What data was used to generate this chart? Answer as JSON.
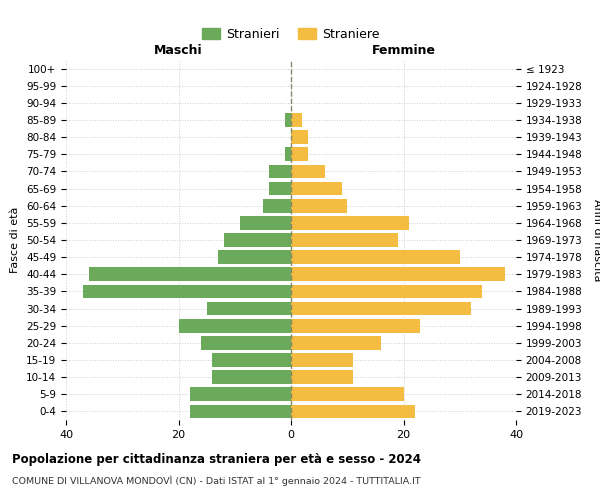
{
  "age_groups": [
    "0-4",
    "5-9",
    "10-14",
    "15-19",
    "20-24",
    "25-29",
    "30-34",
    "35-39",
    "40-44",
    "45-49",
    "50-54",
    "55-59",
    "60-64",
    "65-69",
    "70-74",
    "75-79",
    "80-84",
    "85-89",
    "90-94",
    "95-99",
    "100+"
  ],
  "birth_years": [
    "2019-2023",
    "2014-2018",
    "2009-2013",
    "2004-2008",
    "1999-2003",
    "1994-1998",
    "1989-1993",
    "1984-1988",
    "1979-1983",
    "1974-1978",
    "1969-1973",
    "1964-1968",
    "1959-1963",
    "1954-1958",
    "1949-1953",
    "1944-1948",
    "1939-1943",
    "1934-1938",
    "1929-1933",
    "1924-1928",
    "≤ 1923"
  ],
  "maschi": [
    18,
    18,
    14,
    14,
    16,
    20,
    15,
    37,
    36,
    13,
    12,
    9,
    5,
    4,
    4,
    1,
    0,
    1,
    0,
    0,
    0
  ],
  "femmine": [
    22,
    20,
    11,
    11,
    16,
    23,
    32,
    34,
    38,
    30,
    19,
    21,
    10,
    9,
    6,
    3,
    3,
    2,
    0,
    0,
    0
  ],
  "color_maschi": "#6aaa5a",
  "color_femmine": "#f5bc42",
  "bg_color": "#ffffff",
  "grid_color": "#cccccc",
  "title": "Popolazione per cittadinanza straniera per età e sesso - 2024",
  "subtitle": "COMUNE DI VILLANOVA MONDOVÌ (CN) - Dati ISTAT al 1° gennaio 2024 - TUTTITALIA.IT",
  "label_maschi": "Stranieri",
  "label_femmine": "Straniere",
  "xlabel_left": "Maschi",
  "xlabel_right": "Femmine",
  "ylabel_left": "Fasce di età",
  "ylabel_right": "Anni di nascita",
  "xlim": 40
}
